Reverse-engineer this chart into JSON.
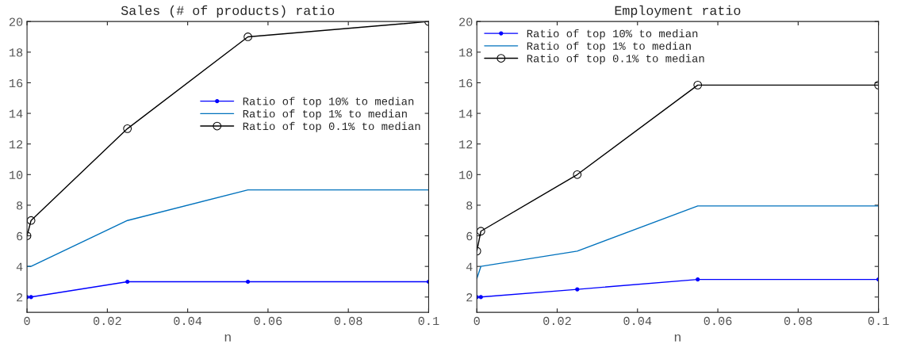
{
  "chart_data": [
    {
      "type": "line",
      "title": "Sales (# of products) ratio",
      "xlabel": "n",
      "x": [
        0,
        0.001,
        0.025,
        0.055,
        0.1
      ],
      "xlim": [
        0,
        0.1
      ],
      "xticks": [
        0,
        0.02,
        0.04,
        0.06,
        0.08,
        0.1
      ],
      "ylim": [
        1,
        20
      ],
      "yticks": [
        2,
        4,
        6,
        8,
        10,
        12,
        14,
        16,
        18,
        20
      ],
      "legend": "right",
      "grid": false,
      "series": [
        {
          "name": "Ratio of top 10% to median",
          "color": "#0000ff",
          "marker": "point",
          "values": [
            2,
            2,
            3,
            3,
            3
          ]
        },
        {
          "name": "Ratio of top 1% to median",
          "color": "#0072bd",
          "marker": "none",
          "values": [
            4,
            4,
            7,
            9,
            9
          ]
        },
        {
          "name": "Ratio of top 0.1% to median",
          "color": "#000000",
          "marker": "circle",
          "values": [
            6,
            7,
            13,
            19,
            20
          ]
        }
      ]
    },
    {
      "type": "line",
      "title": "Employment ratio",
      "xlabel": "n",
      "x": [
        0,
        0.001,
        0.025,
        0.055,
        0.1
      ],
      "xlim": [
        0,
        0.1
      ],
      "xticks": [
        0,
        0.02,
        0.04,
        0.06,
        0.08,
        0.1
      ],
      "ylim": [
        1,
        20
      ],
      "yticks": [
        2,
        4,
        6,
        8,
        10,
        12,
        14,
        16,
        18,
        20
      ],
      "legend": "top left",
      "grid": false,
      "series": [
        {
          "name": "Ratio of top 10% to median",
          "color": "#0000ff",
          "marker": "point",
          "values": [
            2,
            2,
            2.5,
            3.15,
            3.15
          ]
        },
        {
          "name": "Ratio of top 1% to median",
          "color": "#0072bd",
          "marker": "none",
          "values": [
            3.2,
            4,
            5,
            7.95,
            7.95
          ]
        },
        {
          "name": "Ratio of top 0.1% to median",
          "color": "#000000",
          "marker": "circle",
          "values": [
            5,
            6.3,
            10,
            15.85,
            15.85
          ]
        }
      ]
    }
  ]
}
